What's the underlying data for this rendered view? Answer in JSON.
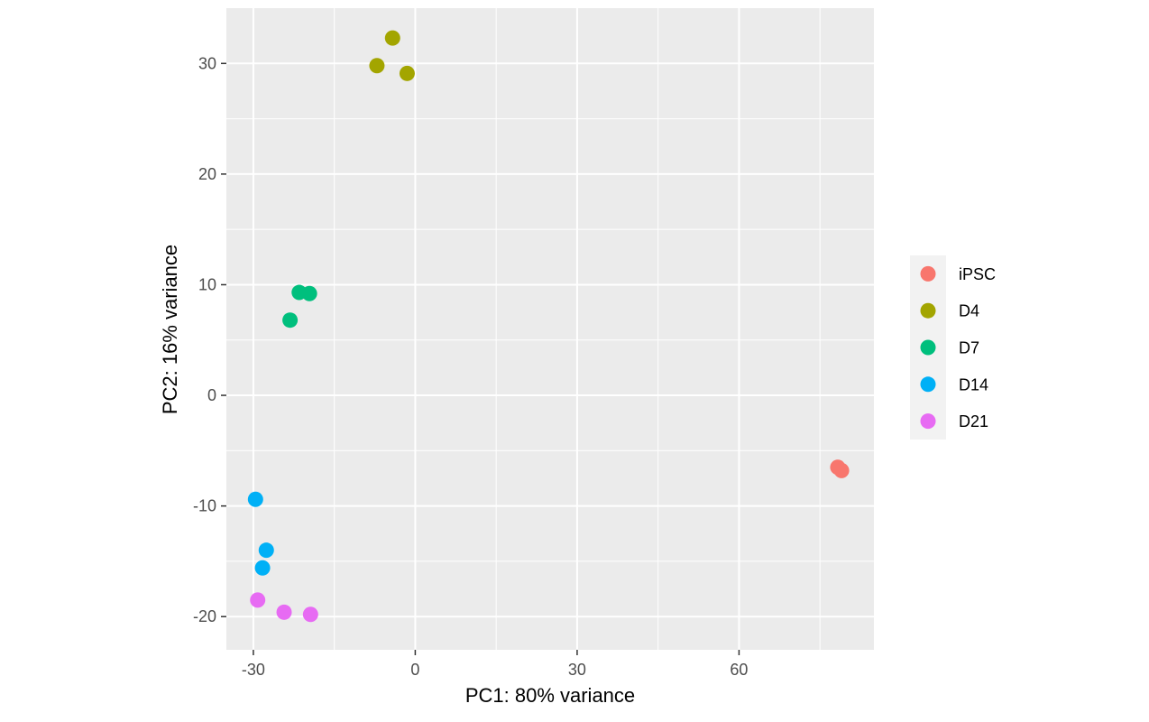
{
  "chart_data": {
    "type": "scatter",
    "title": "",
    "xlabel": "PC1: 80% variance",
    "ylabel": "PC2: 16% variance",
    "xlim": [
      -35,
      85
    ],
    "ylim": [
      -23,
      35
    ],
    "xticks": [
      -30,
      0,
      30,
      60
    ],
    "xtick_labels": [
      "-30",
      "0",
      "30",
      "60"
    ],
    "yticks": [
      -20,
      -10,
      0,
      10,
      20,
      30
    ],
    "ytick_labels": [
      "-20",
      "-10",
      "0",
      "10",
      "20",
      "30"
    ],
    "grid": true,
    "legend_position": "right",
    "series": [
      {
        "name": "iPSC",
        "color": "#F8766D",
        "points": [
          [
            78.3,
            -6.5
          ],
          [
            79.0,
            -6.8
          ]
        ]
      },
      {
        "name": "D4",
        "color": "#A3A500",
        "points": [
          [
            -4.2,
            32.3
          ],
          [
            -7.1,
            29.8
          ],
          [
            -1.5,
            29.1
          ]
        ]
      },
      {
        "name": "D7",
        "color": "#00BF7D",
        "points": [
          [
            -21.5,
            9.3
          ],
          [
            -19.6,
            9.2
          ],
          [
            -23.2,
            6.8
          ]
        ]
      },
      {
        "name": "D14",
        "color": "#00B0F6",
        "points": [
          [
            -29.6,
            -9.4
          ],
          [
            -27.6,
            -14.0
          ],
          [
            -28.3,
            -15.6
          ]
        ]
      },
      {
        "name": "D21",
        "color": "#E76BF3",
        "points": [
          [
            -29.2,
            -18.5
          ],
          [
            -24.3,
            -19.6
          ],
          [
            -19.4,
            -19.8
          ]
        ]
      }
    ]
  }
}
